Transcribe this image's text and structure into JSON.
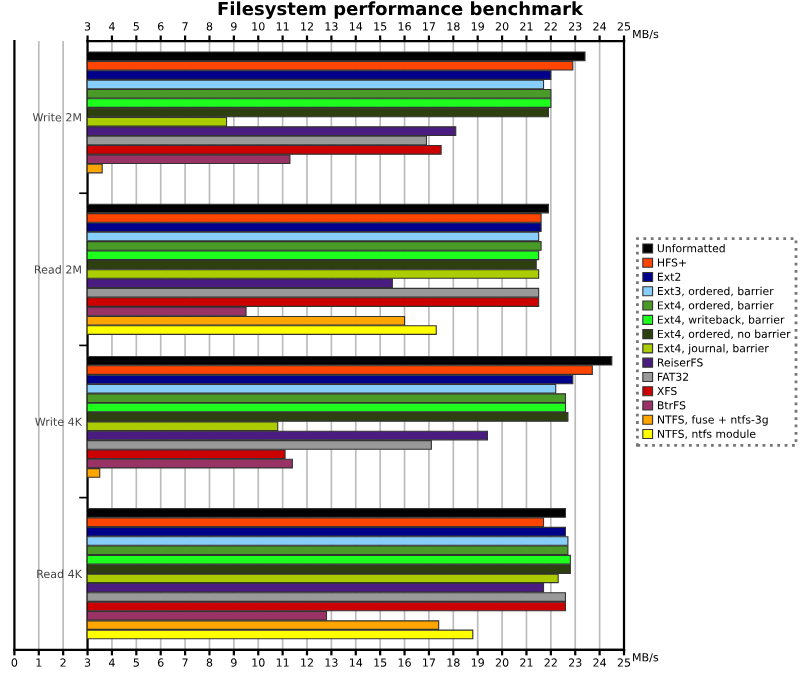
{
  "chart_data": {
    "type": "bar",
    "orientation": "horizontal",
    "title": "Filesystem performance benchmark",
    "categories": [
      "Write 2M",
      "Read 2M",
      "Write 4K",
      "Read 4K"
    ],
    "xlabel": "MB/s",
    "x2label": "MB/s",
    "xlim": [
      0,
      25
    ],
    "xticks": [
      0,
      1,
      2,
      3,
      4,
      5,
      6,
      7,
      8,
      9,
      10,
      11,
      12,
      13,
      14,
      15,
      16,
      17,
      18,
      19,
      20,
      21,
      22,
      23,
      24,
      25
    ],
    "x2lim": [
      3,
      25
    ],
    "x2ticks": [
      3,
      4,
      5,
      6,
      7,
      8,
      9,
      10,
      11,
      12,
      13,
      14,
      15,
      16,
      17,
      18,
      19,
      20,
      21,
      22,
      23,
      24,
      25
    ],
    "grid": "x",
    "legend": "right",
    "series": [
      {
        "name": "Unformatted",
        "color": "#000000",
        "values": [
          23.4,
          21.9,
          24.5,
          22.6
        ]
      },
      {
        "name": "HFS+",
        "color": "#ff4500",
        "values": [
          22.9,
          21.6,
          23.7,
          21.7
        ]
      },
      {
        "name": "Ext2",
        "color": "#00008b",
        "values": [
          22.0,
          21.6,
          22.9,
          22.6
        ]
      },
      {
        "name": "Ext3, ordered, barrier",
        "color": "#87cefa",
        "values": [
          21.7,
          21.5,
          22.2,
          22.7
        ]
      },
      {
        "name": "Ext4, ordered, barrier",
        "color": "#4a9a28",
        "values": [
          22.0,
          21.6,
          22.6,
          22.7
        ]
      },
      {
        "name": "Ext4, writeback, barrier",
        "color": "#1eff1e",
        "values": [
          22.0,
          21.5,
          22.6,
          22.8
        ]
      },
      {
        "name": "Ext4, ordered, no barrier",
        "color": "#2f4010",
        "values": [
          21.9,
          21.4,
          22.7,
          22.8
        ]
      },
      {
        "name": "Ext4, journal, barrier",
        "color": "#aacc00",
        "values": [
          8.7,
          21.5,
          10.8,
          22.3
        ]
      },
      {
        "name": "ReiserFS",
        "color": "#4b1c7f",
        "values": [
          18.1,
          15.5,
          19.4,
          21.7
        ]
      },
      {
        "name": "FAT32",
        "color": "#999999",
        "values": [
          16.9,
          21.5,
          17.1,
          22.6
        ]
      },
      {
        "name": "XFS",
        "color": "#cc0000",
        "values": [
          17.5,
          21.5,
          11.1,
          22.6
        ]
      },
      {
        "name": "BtrFS",
        "color": "#993366",
        "values": [
          11.3,
          9.5,
          11.4,
          12.8
        ]
      },
      {
        "name": "NTFS, fuse + ntfs-3g",
        "color": "#ffa500",
        "values": [
          3.6,
          16.0,
          3.5,
          17.4
        ]
      },
      {
        "name": "NTFS, ntfs module",
        "color": "#ffff00",
        "values": [
          null,
          17.3,
          null,
          18.8
        ]
      }
    ]
  }
}
